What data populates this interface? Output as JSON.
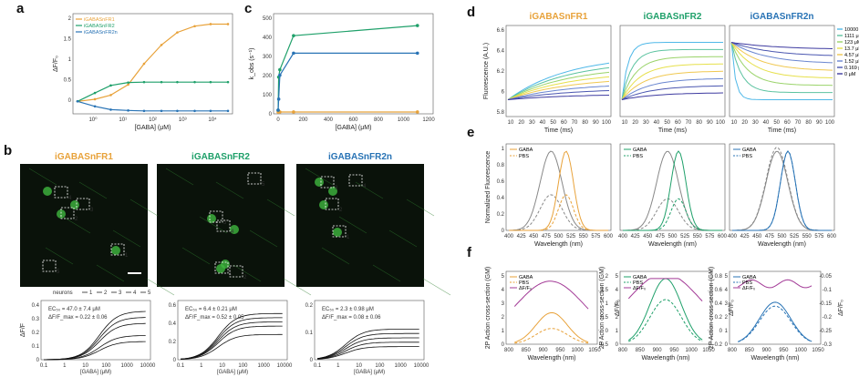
{
  "figure": {
    "panels": [
      "a",
      "b",
      "c",
      "d",
      "e",
      "f"
    ],
    "sensors": [
      "iGABASnFR1",
      "iGABASnFR2",
      "iGABASnFR2n"
    ],
    "colors": {
      "fr1": "#e8a23a",
      "fr2": "#1fa06a",
      "fr2n": "#2873b5",
      "gray": "#888888",
      "purple": "#a33b97"
    }
  },
  "panel_a": {
    "ylabel": "ΔF/F₀",
    "xlabel": "[GABA] (μM)",
    "legend": [
      "iGABASnFR1",
      "iGABASnFR2",
      "iGABASnFR2n"
    ],
    "yticks": [
      "2",
      "1.5",
      "1",
      "0.5",
      "0"
    ],
    "xticks": [
      "10⁰",
      "10¹",
      "10²",
      "10³",
      "10⁴"
    ]
  },
  "panel_b": {
    "titles": [
      "iGABASnFR1",
      "iGABASnFR2",
      "iGABASnFR2n"
    ],
    "neurons_label": "neurons",
    "neuron_ids": [
      "1",
      "2",
      "3",
      "4",
      "5"
    ],
    "roi_labels": [
      [
        "1",
        "2",
        "3",
        "4",
        "5"
      ],
      [
        "1",
        "2",
        "3",
        "4",
        "5"
      ],
      [
        "1",
        "2",
        "3",
        "4"
      ]
    ],
    "ylabel": "ΔF/F",
    "xlabel": "[GABA] (μM)",
    "xticks": [
      "0.1",
      "1",
      "10",
      "100",
      "1000",
      "10000"
    ],
    "stats": [
      {
        "ec50": "EC₅₀ = 47.0 ± 7.4 μM",
        "dff": "ΔF/F_max = 0.22 ± 0.06"
      },
      {
        "ec50": "EC₅₀ = 6.4 ± 0.21 μM",
        "dff": "ΔF/F_max = 0.52 ± 0.05"
      },
      {
        "ec50": "EC₅₀ = 2.3 ± 0.98 μM",
        "dff": "ΔF/F_max = 0.08 ± 0.06"
      }
    ],
    "yticks": [
      [
        "0.4",
        "0.3",
        "0.2",
        "0.1",
        "0"
      ],
      [
        "0.6",
        "0.4",
        "0.2",
        "0"
      ],
      [
        "0.2",
        "0.1",
        "0"
      ]
    ]
  },
  "panel_c": {
    "ylabel": "k_obs (s⁻¹)",
    "xlabel": "[GABA] (μM)",
    "yticks": [
      "500",
      "400",
      "300",
      "200",
      "100",
      "0"
    ],
    "xticks": [
      "0",
      "200",
      "400",
      "600",
      "800",
      "1000",
      "1200"
    ]
  },
  "panel_d": {
    "titles": [
      "iGABASnFR1",
      "iGABASnFR2",
      "iGABASnFR2n"
    ],
    "ylabel": "Fluorescence (A.U.)",
    "xlabel": "Time (ms)",
    "yticks": [
      "6.6",
      "6.4",
      "6.2",
      "6",
      "5.8"
    ],
    "xticks": [
      "10",
      "20",
      "30",
      "40",
      "50",
      "60",
      "70",
      "80",
      "90",
      "100"
    ],
    "legend": [
      "10000 μM",
      "1111 μM",
      "123 μM",
      "13.7 μM",
      "4.57 μM",
      "1.52 μM",
      "0.169 μM",
      "0 μM"
    ]
  },
  "panel_e": {
    "ylabel": "Normalized Fluorescence",
    "xlabel": "Wavelength (nm)",
    "legend": [
      "GABA",
      "PBS"
    ],
    "yticks": [
      "1",
      "0.8",
      "0.6",
      "0.4",
      "0.2",
      "0"
    ],
    "xticks": [
      "400",
      "425",
      "450",
      "475",
      "500",
      "525",
      "550",
      "575",
      "600"
    ]
  },
  "panel_f": {
    "ylabel": "2P Action cross-section (GM)",
    "ylabel2": "ΔF/F₀",
    "xlabel": "Wavelength (nm)",
    "legend": [
      "GABA",
      "PBS",
      "ΔF/F₀"
    ],
    "yticks": [
      "5",
      "4",
      "3",
      "2",
      "1",
      "0"
    ],
    "xticks": [
      "800",
      "850",
      "900",
      "950",
      "1000",
      "1050"
    ],
    "y2ticks": [
      [
        "2",
        "1.5",
        "1",
        "0.5",
        "0",
        "-0.5"
      ],
      [
        "0.8",
        "0.6",
        "0.4",
        "0.2",
        "0",
        "-0.2"
      ],
      [
        "-0.05",
        "-0.1",
        "-0.15",
        "-0.2",
        "-0.25",
        "-0.3"
      ]
    ]
  },
  "chart_data": [
    {
      "type": "line",
      "panel": "a",
      "xscale": "log",
      "x": [
        0.3,
        1,
        3,
        10,
        30,
        100,
        300,
        1000,
        3000,
        10000
      ],
      "series": [
        {
          "name": "iGABASnFR1",
          "values": [
            0.0,
            0.05,
            0.15,
            0.4,
            0.9,
            1.35,
            1.65,
            1.8,
            1.85,
            1.85
          ]
        },
        {
          "name": "iGABASnFR2",
          "values": [
            0.0,
            0.2,
            0.38,
            0.45,
            0.46,
            0.46,
            0.46,
            0.46,
            0.46,
            0.46
          ]
        },
        {
          "name": "iGABASnFR2n",
          "values": [
            0.0,
            -0.12,
            -0.2,
            -0.22,
            -0.23,
            -0.23,
            -0.23,
            -0.23,
            -0.23,
            -0.23
          ]
        }
      ],
      "ylim": [
        -0.3,
        2.1
      ]
    },
    {
      "type": "line",
      "panel": "c",
      "x": [
        0,
        4.57,
        13.7,
        123,
        1111
      ],
      "series": [
        {
          "name": "iGABASnFR1",
          "values": [
            10,
            10,
            10,
            10,
            10
          ]
        },
        {
          "name": "iGABASnFR2",
          "values": [
            20,
            200,
            240,
            425,
            480
          ]
        },
        {
          "name": "iGABASnFR2n",
          "values": [
            20,
            80,
            210,
            330,
            330
          ]
        }
      ],
      "ylim": [
        0,
        520
      ],
      "xlim": [
        -50,
        1250
      ]
    }
  ]
}
